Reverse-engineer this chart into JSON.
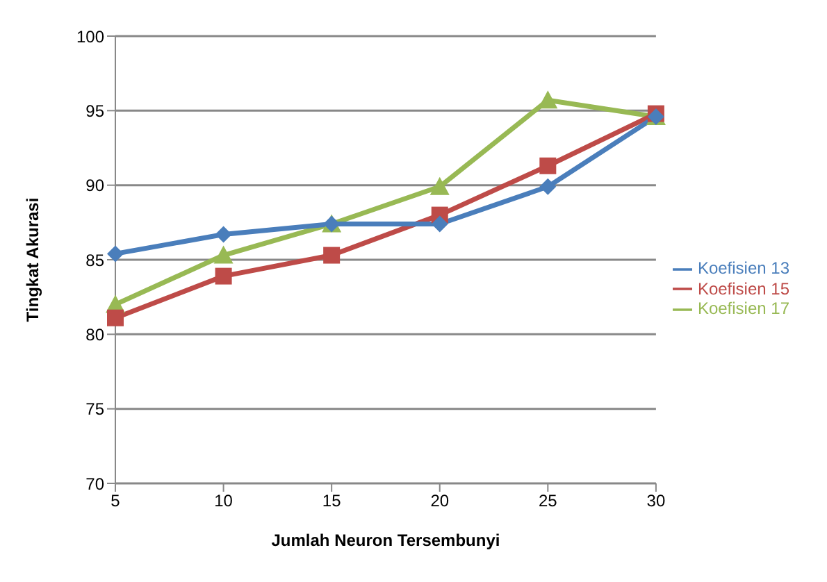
{
  "chart_data": {
    "type": "line",
    "xlabel": "Jumlah  Neuron Tersembunyi",
    "ylabel": "Tingkat  Akurasi",
    "categories": [
      "5",
      "10",
      "15",
      "20",
      "25",
      "30"
    ],
    "series": [
      {
        "name": "Koefisien 13",
        "color": "#4a7ebb",
        "marker": "diamond",
        "values": [
          85.4,
          86.7,
          87.4,
          87.4,
          89.9,
          94.6
        ]
      },
      {
        "name": "Koefisien 15",
        "color": "#be4b48",
        "marker": "square",
        "values": [
          81.1,
          83.9,
          85.3,
          88.0,
          91.3,
          94.8
        ]
      },
      {
        "name": "Koefisien 17",
        "color": "#98b954",
        "marker": "triangle",
        "values": [
          82.0,
          85.3,
          87.4,
          89.9,
          95.7,
          94.6
        ]
      }
    ],
    "ylim": [
      70,
      100
    ],
    "yticks": [
      70,
      75,
      80,
      85,
      90,
      95,
      100
    ],
    "grid": "y",
    "legend": "right"
  }
}
